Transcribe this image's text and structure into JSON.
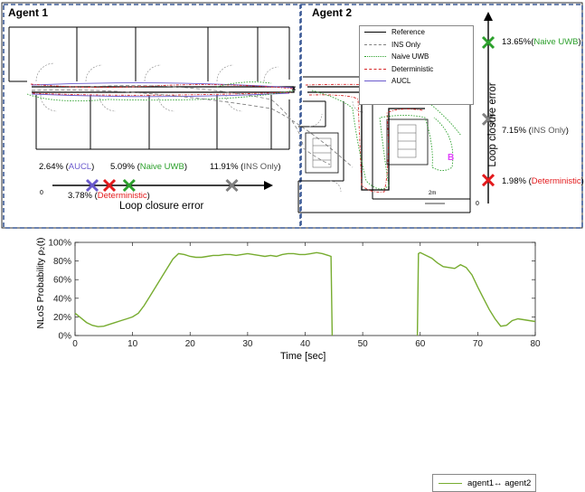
{
  "agents": {
    "agent1": "Agent 1",
    "agent2": "Agent 2"
  },
  "legend": [
    {
      "label": "Reference",
      "color": "#000000",
      "style": "solid"
    },
    {
      "label": "INS Only",
      "color": "#808080",
      "style": "dashed"
    },
    {
      "label": "Naive UWB",
      "color": "#2ca02c",
      "style": "dotted"
    },
    {
      "label": "Deterministic",
      "color": "#d62728",
      "style": "dashdot"
    },
    {
      "label": "AUCL",
      "color": "#6a5acd",
      "style": "solid"
    }
  ],
  "map": {
    "scale_label": "2m",
    "b_marker": "B"
  },
  "loop_closure_horizontal": {
    "axis_label": "Loop closure error",
    "origin_label": "0",
    "markers": [
      {
        "id": "aucl",
        "value": "2.64%",
        "method": "AUCL",
        "color": "#6a5acd"
      },
      {
        "id": "deterministic",
        "value": "3.78%",
        "method": "Deterministic",
        "color": "#e31a1c"
      },
      {
        "id": "naive_uwb",
        "value": "5.09%",
        "method": "Naive UWB",
        "color": "#2ca02c"
      },
      {
        "id": "ins_only",
        "value": "11.91%",
        "method": "INS Only",
        "color": "#808080"
      }
    ]
  },
  "loop_closure_vertical": {
    "axis_label": "Loop closure error",
    "origin_label": "0",
    "markers": [
      {
        "id": "naive_uwb",
        "value": "13.65%",
        "method": "Naive UWB",
        "color": "#2ca02c"
      },
      {
        "id": "ins_only",
        "value": "7.15%",
        "method": "INS Only",
        "color": "#808080"
      },
      {
        "id": "deterministic",
        "value": "1.98%",
        "method": "Deterministic",
        "color": "#e31a1c"
      }
    ]
  },
  "chart_data": {
    "type": "line",
    "xlabel": "Time [sec]",
    "ylabel": "NLoS Probability ρ₂(t)",
    "xlim": [
      0,
      80
    ],
    "ylim": [
      0,
      100
    ],
    "xticks": [
      0,
      10,
      20,
      30,
      40,
      50,
      60,
      70,
      80
    ],
    "yticks": [
      "0%",
      "20%",
      "40%",
      "60%",
      "80%",
      "100%"
    ],
    "grid": false,
    "legend_position": "top-right",
    "series": [
      {
        "name": "agent1↔ agent2",
        "color": "#77ac30",
        "segments": [
          [
            [
              0,
              24
            ],
            [
              1,
              19
            ],
            [
              2,
              14
            ],
            [
              3,
              11
            ],
            [
              4,
              9.5
            ],
            [
              5,
              10
            ],
            [
              6,
              12
            ],
            [
              7,
              14
            ],
            [
              8,
              16
            ],
            [
              9,
              18
            ],
            [
              10,
              20
            ],
            [
              11,
              24
            ],
            [
              12,
              32
            ],
            [
              13,
              42
            ],
            [
              14,
              52
            ],
            [
              15,
              62
            ],
            [
              16,
              72
            ],
            [
              17,
              82
            ],
            [
              18,
              88
            ],
            [
              19,
              87
            ],
            [
              20,
              85
            ],
            [
              21,
              84
            ],
            [
              22,
              84
            ],
            [
              23,
              85
            ],
            [
              24,
              86
            ],
            [
              25,
              86
            ],
            [
              26,
              87
            ],
            [
              27,
              87
            ],
            [
              28,
              86
            ],
            [
              29,
              87
            ],
            [
              30,
              88
            ],
            [
              31,
              87
            ],
            [
              32,
              86
            ],
            [
              33,
              85
            ],
            [
              34,
              86
            ],
            [
              35,
              85
            ],
            [
              36,
              87
            ],
            [
              37,
              88
            ],
            [
              38,
              88
            ],
            [
              39,
              87
            ],
            [
              40,
              87
            ],
            [
              41,
              88
            ],
            [
              42,
              89
            ],
            [
              43,
              88
            ],
            [
              44,
              86
            ],
            [
              44.5,
              85
            ],
            [
              44.7,
              0
            ]
          ],
          [
            [
              59.5,
              0
            ],
            [
              59.7,
              88
            ],
            [
              60,
              89
            ],
            [
              61,
              86
            ],
            [
              62,
              83
            ],
            [
              63,
              78
            ],
            [
              64,
              74
            ],
            [
              65,
              73
            ],
            [
              66,
              72
            ],
            [
              67,
              76
            ],
            [
              68,
              73
            ],
            [
              69,
              65
            ],
            [
              70,
              52
            ],
            [
              71,
              40
            ],
            [
              72,
              28
            ],
            [
              73,
              18
            ],
            [
              74,
              10
            ],
            [
              75,
              11
            ],
            [
              76,
              16
            ],
            [
              77,
              18
            ],
            [
              78,
              17
            ],
            [
              79,
              16
            ],
            [
              80,
              15
            ]
          ]
        ]
      }
    ]
  }
}
